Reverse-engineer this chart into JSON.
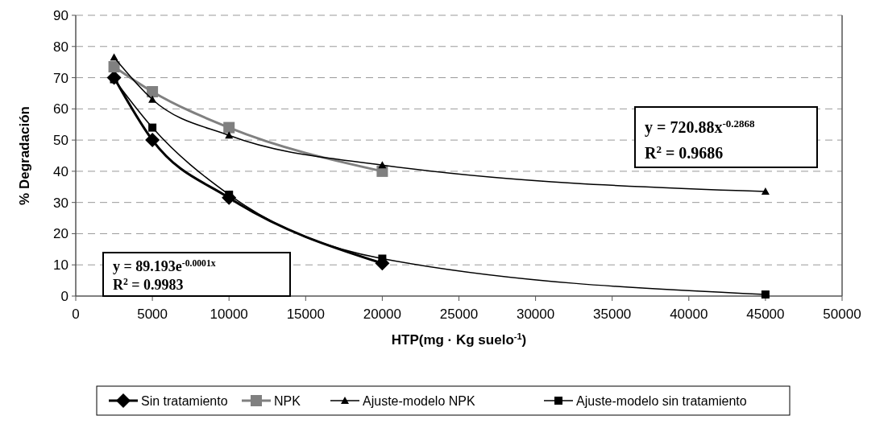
{
  "chart_data": {
    "type": "line",
    "xlabel": "HTP(mg · Kg suelo$^{-1}$)",
    "ylabel": "% Degradación",
    "xlim": [
      0,
      50000
    ],
    "xticks": [
      0,
      5000,
      10000,
      15000,
      20000,
      25000,
      30000,
      35000,
      40000,
      45000,
      50000
    ],
    "ylim": [
      0,
      90
    ],
    "yticks": [
      0,
      10,
      20,
      30,
      40,
      50,
      60,
      70,
      80,
      90
    ],
    "grid": "y",
    "legend": "bottom",
    "annotations": [
      "y = 720.88x$^{-0.2868}$",
      "R$^{2}$ = 0.9686",
      "y = 89.193e$^{-0.0001x}$",
      "R$^{2}$ = 0.9983"
    ],
    "series": [
      {
        "name": "Sin tratamiento",
        "color": "#000000",
        "marker": "diamond",
        "x": [
          2500,
          5000,
          10000,
          20000
        ],
        "values": [
          70,
          50,
          31.5,
          10.5
        ]
      },
      {
        "name": "NPK",
        "color": "#808080",
        "marker": "square",
        "x": [
          2500,
          5000,
          10000,
          20000
        ],
        "values": [
          73.5,
          65.5,
          54,
          40
        ]
      },
      {
        "name": "Ajuste-modelo NPK",
        "color": "#000000",
        "marker": "triangle",
        "x": [
          2500,
          5000,
          10000,
          20000,
          45000
        ],
        "values": [
          76.5,
          63,
          51.5,
          42,
          33.5
        ]
      },
      {
        "name": "Ajuste-modelo sin tratamiento",
        "color": "#000000",
        "marker": "square",
        "x": [
          2500,
          5000,
          10000,
          20000,
          45000
        ],
        "values": [
          69.5,
          54,
          32.5,
          12,
          0.5
        ]
      }
    ]
  }
}
